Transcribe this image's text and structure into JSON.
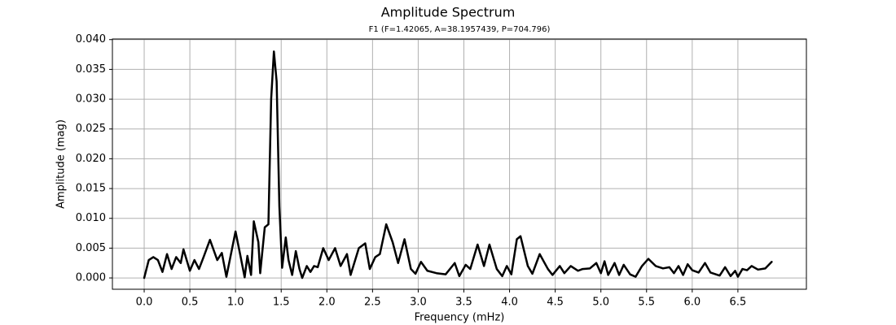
{
  "chart_data": {
    "type": "line",
    "title": "Amplitude Spectrum",
    "subtitle": "F1 (F=1.42065, A=38.1957439, P=704.796)",
    "x_label": "Frequency (mHz)",
    "y_label": "Amplitude (mag)",
    "grid": true,
    "xlim": [
      -0.348,
      7.25
    ],
    "ylim": [
      -0.0019,
      0.0401
    ],
    "xticks": [
      {
        "value": 0,
        "label": "0.0"
      },
      0.5,
      {
        "value": 1,
        "label": "1.0"
      },
      1.5,
      {
        "value": 2,
        "label": "2.0"
      },
      2.5,
      {
        "value": 3,
        "label": "3.0"
      },
      3.5,
      {
        "value": 4,
        "label": "4.0"
      },
      4.5,
      {
        "value": 5,
        "label": "5.0"
      },
      5.5,
      {
        "value": 6,
        "label": "6.0"
      },
      6.5
    ],
    "yticks": [
      {
        "value": 0,
        "label": "0.000"
      },
      0.005,
      {
        "value": 0.01,
        "label": "0.010"
      },
      0.015,
      {
        "value": 0.02,
        "label": "0.020"
      },
      0.025,
      {
        "value": 0.03,
        "label": "0.030"
      },
      0.035,
      {
        "value": 0.04,
        "label": "0.040"
      }
    ],
    "series": [
      {
        "color": "#000000",
        "x": [
          0.0,
          0.05,
          0.1,
          0.15,
          0.2,
          0.25,
          0.3,
          0.35,
          0.4,
          0.43,
          0.5,
          0.55,
          0.6,
          0.65,
          0.72,
          0.8,
          0.85,
          0.9,
          0.95,
          1.0,
          1.05,
          1.1,
          1.13,
          1.17,
          1.2,
          1.25,
          1.27,
          1.32,
          1.36,
          1.39,
          1.42,
          1.45,
          1.48,
          1.51,
          1.55,
          1.58,
          1.62,
          1.66,
          1.7,
          1.73,
          1.78,
          1.82,
          1.86,
          1.9,
          1.96,
          2.02,
          2.09,
          2.15,
          2.22,
          2.26,
          2.35,
          2.42,
          2.47,
          2.53,
          2.58,
          2.65,
          2.72,
          2.78,
          2.85,
          2.92,
          2.97,
          3.03,
          3.1,
          3.2,
          3.3,
          3.4,
          3.45,
          3.52,
          3.57,
          3.65,
          3.72,
          3.78,
          3.86,
          3.92,
          3.97,
          4.02,
          4.08,
          4.12,
          4.2,
          4.25,
          4.33,
          4.42,
          4.47,
          4.55,
          4.6,
          4.67,
          4.75,
          4.8,
          4.88,
          4.95,
          5.0,
          5.04,
          5.08,
          5.15,
          5.2,
          5.25,
          5.32,
          5.38,
          5.45,
          5.52,
          5.6,
          5.68,
          5.75,
          5.8,
          5.85,
          5.9,
          5.95,
          6.0,
          6.07,
          6.14,
          6.2,
          6.3,
          6.36,
          6.42,
          6.47,
          6.5,
          6.55,
          6.6,
          6.65,
          6.72,
          6.8,
          6.87
        ],
        "values": [
          0.0,
          0.003,
          0.0035,
          0.003,
          0.001,
          0.004,
          0.0015,
          0.0035,
          0.0025,
          0.0048,
          0.0012,
          0.003,
          0.0015,
          0.0035,
          0.0064,
          0.003,
          0.0042,
          0.0002,
          0.004,
          0.0078,
          0.004,
          0.0001,
          0.0037,
          0.0005,
          0.0095,
          0.006,
          0.0008,
          0.0085,
          0.009,
          0.03,
          0.038,
          0.033,
          0.012,
          0.0017,
          0.0068,
          0.003,
          0.0005,
          0.0045,
          0.0015,
          0.0,
          0.002,
          0.001,
          0.002,
          0.0018,
          0.005,
          0.003,
          0.005,
          0.002,
          0.004,
          0.0005,
          0.005,
          0.0058,
          0.0015,
          0.0035,
          0.004,
          0.009,
          0.006,
          0.0025,
          0.0065,
          0.0015,
          0.0007,
          0.0027,
          0.0012,
          0.0008,
          0.0006,
          0.0025,
          0.0003,
          0.0022,
          0.0015,
          0.0056,
          0.002,
          0.0056,
          0.0015,
          0.0003,
          0.002,
          0.0006,
          0.0065,
          0.007,
          0.002,
          0.0007,
          0.004,
          0.0015,
          0.0005,
          0.002,
          0.0008,
          0.002,
          0.0012,
          0.0015,
          0.0016,
          0.0025,
          0.0008,
          0.0028,
          0.0005,
          0.0025,
          0.0005,
          0.0022,
          0.0006,
          0.0002,
          0.002,
          0.0032,
          0.002,
          0.0016,
          0.0018,
          0.0008,
          0.002,
          0.0005,
          0.0023,
          0.0013,
          0.0009,
          0.0025,
          0.0009,
          0.0004,
          0.0018,
          0.0003,
          0.0012,
          0.0002,
          0.0015,
          0.0013,
          0.002,
          0.0014,
          0.0016,
          0.0027
        ]
      }
    ]
  }
}
